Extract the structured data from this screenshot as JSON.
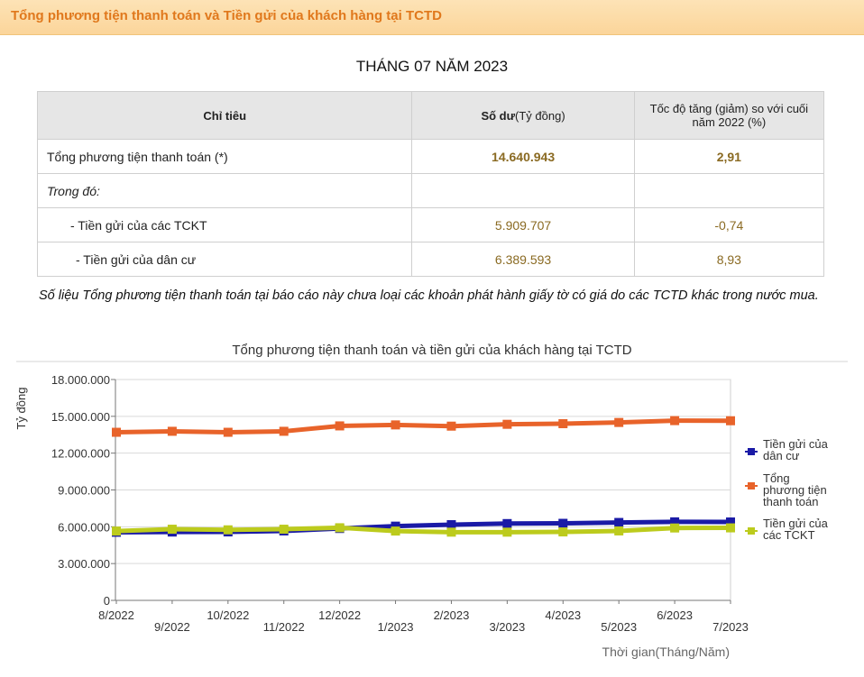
{
  "header": {
    "title": "Tổng phương tiện thanh toán và Tiền gửi của khách hàng tại TCTD"
  },
  "report": {
    "period": "THÁNG 07 NĂM 2023",
    "table": {
      "headers": {
        "indicator": "Chỉ tiêu",
        "balance_bold": "Số dư",
        "balance_unit": "(Tỷ đồng)",
        "growth": "Tốc độ tăng (giảm) so với cuối năm 2022 (%)"
      },
      "rows": [
        {
          "label": "Tổng phương tiện thanh toán (*)",
          "value": "14.640.943",
          "growth": "2,91"
        },
        {
          "label": "Trong đó:",
          "value": "",
          "growth": ""
        },
        {
          "label": "- Tiền gửi của các TCKT",
          "value": "5.909.707",
          "growth": "-0,74"
        },
        {
          "label": "- Tiền gửi của dân cư",
          "value": "6.389.593",
          "growth": "8,93"
        }
      ]
    },
    "note": "Số liệu Tổng phương tiện thanh toán tại báo cáo này chưa loại các khoản phát hành giấy tờ có giá do các TCTD khác trong nước mua."
  },
  "chart_data": {
    "type": "line",
    "title": "Tổng phương tiện thanh toán và tiền gửi của khách hàng tại TCTD",
    "xlabel": "Thời gian(Tháng/Năm)",
    "ylabel": "Tỷ đồng",
    "ylim": [
      0,
      18000000
    ],
    "yticks": [
      "0",
      "3.000.000",
      "6.000.000",
      "9.000.000",
      "12.000.000",
      "15.000.000",
      "18.000.000"
    ],
    "ytick_values": [
      0,
      3000000,
      6000000,
      9000000,
      12000000,
      15000000,
      18000000
    ],
    "grid": true,
    "legend_position": "right",
    "categories": [
      "8/2022",
      "9/2022",
      "10/2022",
      "11/2022",
      "12/2022",
      "1/2023",
      "2/2023",
      "3/2023",
      "4/2023",
      "5/2023",
      "6/2023",
      "7/2023"
    ],
    "series": [
      {
        "name": "Tiền gửi của dân cư",
        "legend_lines": [
          "Tiền gửi của",
          "dân cư"
        ],
        "color": "#1a1aa6",
        "values": [
          5550000,
          5570000,
          5580000,
          5660000,
          5860000,
          6050000,
          6170000,
          6260000,
          6280000,
          6350000,
          6400000,
          6390000
        ]
      },
      {
        "name": "Tổng phương tiện thanh toán",
        "legend_lines": [
          "Tổng",
          "phương tiện",
          "thanh toán"
        ],
        "color": "#e8632a",
        "values": [
          13700000,
          13780000,
          13700000,
          13780000,
          14220000,
          14300000,
          14200000,
          14350000,
          14400000,
          14500000,
          14650000,
          14640000
        ]
      },
      {
        "name": "Tiền gửi của các TCKT",
        "legend_lines": [
          "Tiền gửi của",
          "các TCKT"
        ],
        "color": "#bccb1d",
        "values": [
          5650000,
          5800000,
          5750000,
          5800000,
          5920000,
          5650000,
          5560000,
          5560000,
          5580000,
          5660000,
          5900000,
          5910000
        ]
      }
    ]
  }
}
